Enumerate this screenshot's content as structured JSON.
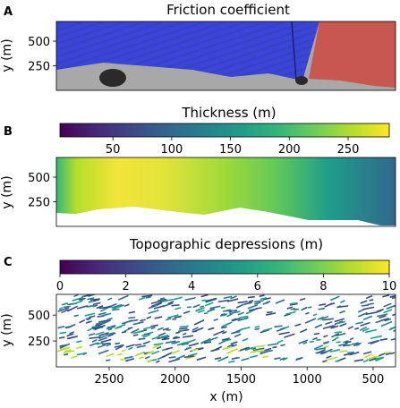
{
  "panels": [
    {
      "letter": "A",
      "title": "Friction coefficient"
    },
    {
      "letter": "B",
      "title": "Thickness (m)"
    },
    {
      "letter": "C",
      "title": "Topographic depressions (m)"
    }
  ],
  "colors": {
    "friction_blue": "#3a44d6",
    "friction_red": "#c8574f",
    "bedrock_gray": "#9a9a9a",
    "viridis": [
      "#440154",
      "#482878",
      "#3e4989",
      "#31688e",
      "#26828e",
      "#1f9e89",
      "#35b779",
      "#6ece58",
      "#b5de2b",
      "#fde725"
    ]
  },
  "chart_data": [
    {
      "type": "heatmap",
      "panel": "A",
      "title": "Friction coefficient",
      "ylabel": "y (m)",
      "yticks": [
        250,
        500
      ],
      "ylim": [
        700,
        0
      ],
      "xlim": [
        2900,
        330
      ],
      "regions": [
        {
          "name": "blue",
          "x_from": 2900,
          "x_to": 850
        },
        {
          "name": "red",
          "x_from": 850,
          "x_to": 330
        }
      ]
    },
    {
      "type": "heatmap",
      "panel": "B",
      "title": "Thickness (m)",
      "colormap": "viridis",
      "colorbar_ticks": [
        50,
        100,
        150,
        200,
        250
      ],
      "colorbar_range": [
        5,
        285
      ],
      "ylabel": "y (m)",
      "yticks": [
        250,
        500
      ],
      "ylim": [
        700,
        0
      ],
      "xlim": [
        2900,
        330
      ]
    },
    {
      "type": "heatmap",
      "panel": "C",
      "title": "Topographic depressions (m)",
      "colormap": "viridis",
      "colorbar_ticks": [
        0,
        2,
        4,
        6,
        8,
        10
      ],
      "colorbar_range": [
        0,
        10
      ],
      "ylabel": "y (m)",
      "yticks": [
        250,
        500
      ],
      "xlabel": "x (m)",
      "xticks": [
        2500,
        2000,
        1500,
        1000,
        500
      ],
      "ylim": [
        700,
        0
      ],
      "xlim": [
        2900,
        330
      ]
    }
  ]
}
